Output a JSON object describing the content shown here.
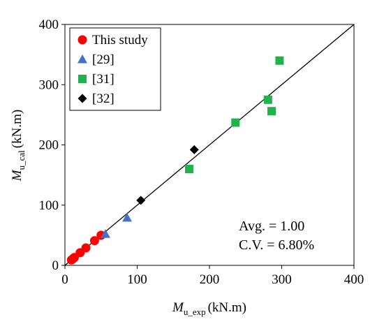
{
  "chart_data": {
    "type": "scatter",
    "xlabel": {
      "main": "M",
      "sub": "u_exp",
      "unit": "(kN.m)"
    },
    "ylabel": {
      "main": "M",
      "sub": "u_cal",
      "unit": "(kN.m)"
    },
    "xlim": [
      0,
      400
    ],
    "ylim": [
      0,
      400
    ],
    "xticks": [
      "0",
      "100",
      "200",
      "300",
      "400"
    ],
    "yticks": [
      "0",
      "100",
      "200",
      "300",
      "400"
    ],
    "grid": false,
    "legend_position": "top-left",
    "reference_line": {
      "from": [
        0,
        0
      ],
      "to": [
        400,
        400
      ]
    },
    "series": [
      {
        "name": "This study",
        "marker": "circle",
        "color": "#FF0000",
        "points": [
          [
            9,
            9
          ],
          [
            11,
            11
          ],
          [
            13,
            13
          ],
          [
            21,
            21
          ],
          [
            29,
            29
          ],
          [
            41,
            41
          ],
          [
            50,
            50
          ]
        ]
      },
      {
        "name": "[29]",
        "marker": "triangle",
        "color": "#4472C4",
        "points": [
          [
            56,
            52
          ],
          [
            86,
            79
          ]
        ]
      },
      {
        "name": "[31]",
        "marker": "square",
        "color": "#22B24C",
        "points": [
          [
            172,
            160
          ],
          [
            236,
            237
          ],
          [
            281,
            275
          ],
          [
            286,
            256
          ],
          [
            297,
            340
          ]
        ]
      },
      {
        "name": "[32]",
        "marker": "diamond",
        "color": "#000000",
        "points": [
          [
            105,
            108
          ],
          [
            179,
            192
          ]
        ]
      }
    ],
    "annotations": [
      "Avg. = 1.00",
      "C.V. = 6.80%"
    ]
  }
}
